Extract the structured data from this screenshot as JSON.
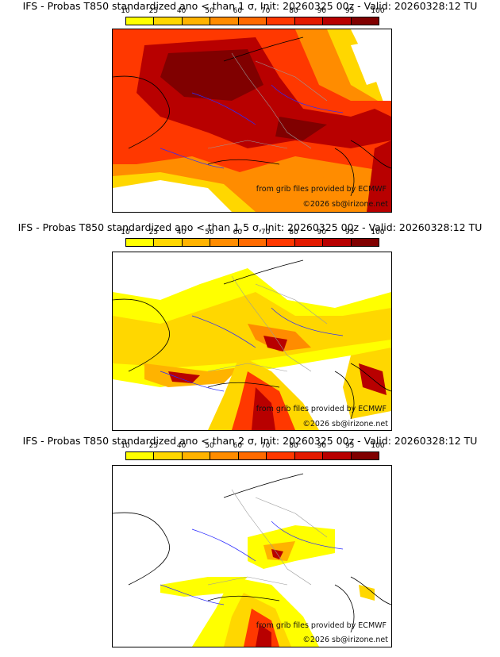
{
  "panels": [
    {
      "title": "IFS - Probas T850  standardized ano < than 1 σ, Init: 20260325 00z - Valid: 20260328:12 TU"
    },
    {
      "title": "IFS - Probas T850  standardized ano < than 1.5 σ, Init: 20260325 00z - Valid: 20260328:12 TU"
    },
    {
      "title": "IFS - Probas T850  standardized ano < than 2 σ, Init: 20260325 00z - Valid: 20260328:12 TU"
    }
  ],
  "colorbar": {
    "ticks": [
      "10",
      "25",
      "40",
      "50",
      "60",
      "70",
      "80",
      "90",
      "95",
      "100"
    ],
    "colors": [
      "#ffff00",
      "#ffd700",
      "#ffb300",
      "#ff8c00",
      "#ff6a00",
      "#ff3800",
      "#e31a00",
      "#b80000",
      "#800000"
    ]
  },
  "credits": {
    "source": "from grib files provided by ECMWF",
    "copyright": "©2026 sb@irizone.net"
  },
  "colors": {
    "coast": "#000000",
    "rivers": "#2b2bff",
    "borders": "#9a9a9a"
  }
}
